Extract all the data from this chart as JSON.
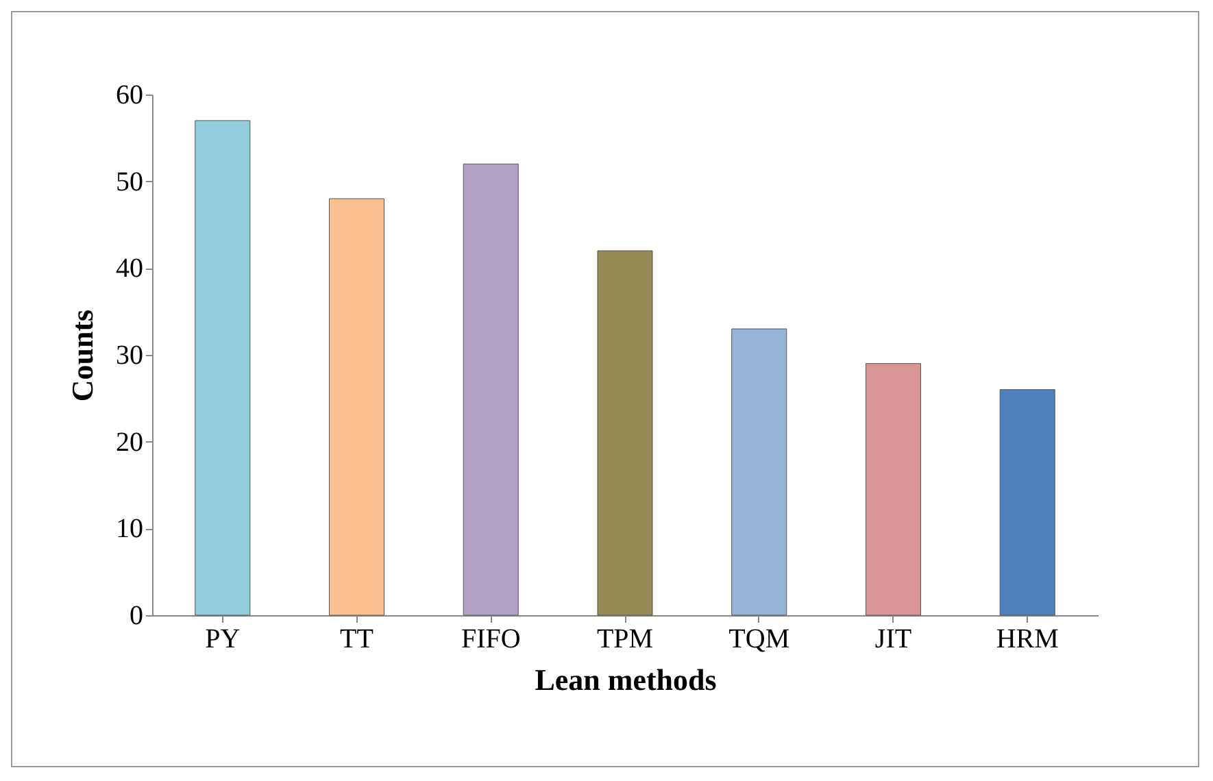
{
  "chart_data": {
    "type": "bar",
    "xlabel": "Lean methods",
    "ylabel": "Counts",
    "categories": [
      "PY",
      "TT",
      "FIFO",
      "TPM",
      "TQM",
      "JIT",
      "HRM"
    ],
    "values": [
      57,
      48,
      52,
      42,
      33,
      29,
      26
    ],
    "colors": [
      "#92cddc",
      "#fac090",
      "#b3a2c7",
      "#948a54",
      "#95b3d7",
      "#d99694",
      "#4f81bd"
    ],
    "ylim": [
      0,
      60
    ],
    "yticks": [
      0,
      10,
      20,
      30,
      40,
      50,
      60
    ],
    "grid": false,
    "legend": false
  }
}
